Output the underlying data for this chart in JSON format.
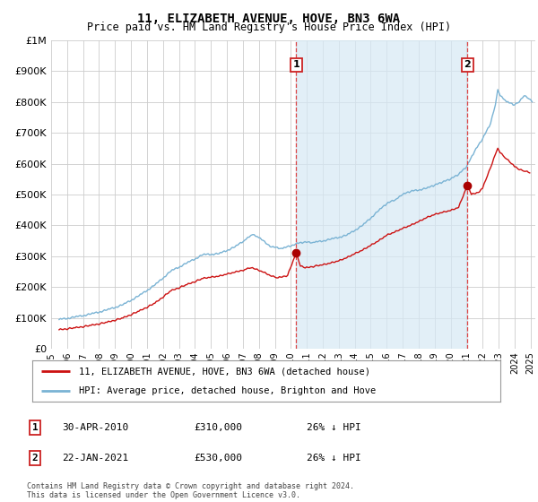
{
  "title": "11, ELIZABETH AVENUE, HOVE, BN3 6WA",
  "subtitle": "Price paid vs. HM Land Registry's House Price Index (HPI)",
  "legend_line1": "11, ELIZABETH AVENUE, HOVE, BN3 6WA (detached house)",
  "legend_line2": "HPI: Average price, detached house, Brighton and Hove",
  "footnote": "Contains HM Land Registry data © Crown copyright and database right 2024.\nThis data is licensed under the Open Government Licence v3.0.",
  "marker1_label": "1",
  "marker1_date": "30-APR-2010",
  "marker1_price": "£310,000",
  "marker1_hpi": "26% ↓ HPI",
  "marker1_year": 2010.33,
  "marker1_price_val": 310000,
  "marker2_label": "2",
  "marker2_date": "22-JAN-2021",
  "marker2_price": "£530,000",
  "marker2_hpi": "26% ↓ HPI",
  "marker2_year": 2021.05,
  "marker2_price_val": 530000,
  "hpi_color": "#7ab3d4",
  "hpi_fill_color": "#d6e9f5",
  "price_color": "#cc1111",
  "marker_color": "#aa0000",
  "vline_color": "#dd3333",
  "bg_color": "#ffffff",
  "grid_color": "#cccccc",
  "ylim": [
    0,
    1000000
  ],
  "xlim_start": 1995.5,
  "xlim_end": 2025.3,
  "yticks": [
    0,
    100000,
    200000,
    300000,
    400000,
    500000,
    600000,
    700000,
    800000,
    900000,
    1000000
  ],
  "ylabels": [
    "£0",
    "£100K",
    "£200K",
    "£300K",
    "£400K",
    "£500K",
    "£600K",
    "£700K",
    "£800K",
    "£900K",
    "£1M"
  ],
  "xtick_years": [
    1995,
    1996,
    1997,
    1998,
    1999,
    2000,
    2001,
    2002,
    2003,
    2004,
    2005,
    2006,
    2007,
    2008,
    2009,
    2010,
    2011,
    2012,
    2013,
    2014,
    2015,
    2016,
    2017,
    2018,
    2019,
    2020,
    2021,
    2022,
    2023,
    2024,
    2025
  ]
}
